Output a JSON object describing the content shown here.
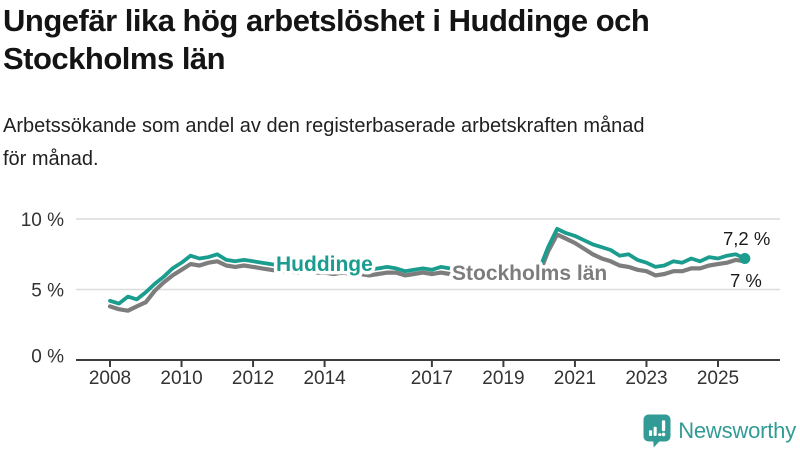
{
  "header": {
    "title": "Ungefär lika hög arbetslöshet i Huddinge och Stockholms län",
    "title_lines": [
      "Ungefär lika hög arbetslöshet i Huddinge och",
      "Stockholms län"
    ],
    "subtitle": "Arbetssökande som andel av den registerbaserade arbetskraften månad för månad.",
    "subtitle_lines": [
      "Arbetssökande som andel av den registerbaserade arbetskraften månad",
      "för månad."
    ]
  },
  "chart_data": {
    "type": "line",
    "title": "Ungefär lika hög arbetslöshet i Huddinge och Stockholms län",
    "subtitle": "Arbetssökande som andel av den registerbaserade arbetskraften månad för månad.",
    "unit": "%",
    "ylim": [
      0,
      10
    ],
    "x_range": [
      2008,
      2025.75
    ],
    "grid": "horizontal",
    "y_tick_values": [
      10,
      5,
      0
    ],
    "y_tick_labels": [
      "10 %",
      "5 %",
      "0 %"
    ],
    "x_tick_values": [
      2008,
      2010,
      2012,
      2014,
      2017,
      2019,
      2021,
      2023,
      2025
    ],
    "x_tick_labels": [
      "2008",
      "2010",
      "2012",
      "2014",
      "2017",
      "2019",
      "2021",
      "2023",
      "2025"
    ],
    "x": [
      2008.0,
      2008.25,
      2008.5,
      2008.75,
      2009.0,
      2009.25,
      2009.5,
      2009.75,
      2010.0,
      2010.25,
      2010.5,
      2010.75,
      2011.0,
      2011.25,
      2011.5,
      2011.75,
      2012.0,
      2012.25,
      2012.5,
      2012.75,
      2013.0,
      2013.25,
      2013.5,
      2013.75,
      2014.0,
      2014.25,
      2014.5,
      2014.75,
      2015.0,
      2015.25,
      2015.5,
      2015.75,
      2016.0,
      2016.25,
      2016.5,
      2016.75,
      2017.0,
      2017.25,
      2017.5,
      2017.75,
      2018.0,
      2018.25,
      2018.5,
      2018.75,
      2019.0,
      2019.25,
      2019.5,
      2019.75,
      2020.0,
      2020.25,
      2020.5,
      2020.75,
      2021.0,
      2021.25,
      2021.5,
      2021.75,
      2022.0,
      2022.25,
      2022.5,
      2022.75,
      2023.0,
      2023.25,
      2023.5,
      2023.75,
      2024.0,
      2024.25,
      2024.5,
      2024.75,
      2025.0,
      2025.25,
      2025.5,
      2025.75
    ],
    "series": [
      {
        "name": "Huddinge",
        "color": "#1a9c8e",
        "end_label": "7,2 %",
        "end_value": 7.2,
        "values": [
          4.2,
          4.0,
          4.5,
          4.3,
          4.8,
          5.4,
          5.9,
          6.5,
          6.9,
          7.4,
          7.2,
          7.3,
          7.5,
          7.1,
          7.0,
          7.1,
          7.0,
          6.9,
          6.8,
          6.7,
          6.7,
          6.6,
          6.7,
          6.6,
          6.6,
          6.5,
          6.6,
          6.5,
          6.5,
          6.4,
          6.5,
          6.6,
          6.5,
          6.3,
          6.4,
          6.5,
          6.4,
          6.6,
          6.5,
          6.4,
          6.4,
          6.3,
          6.3,
          6.2,
          6.2,
          6.3,
          6.3,
          6.3,
          6.4,
          8.0,
          9.3,
          9.0,
          8.8,
          8.5,
          8.2,
          8.0,
          7.8,
          7.4,
          7.5,
          7.1,
          6.9,
          6.6,
          6.7,
          7.0,
          6.9,
          7.2,
          7.0,
          7.3,
          7.2,
          7.4,
          7.5,
          7.2
        ]
      },
      {
        "name": "Stockholms län",
        "color": "#7d7d7d",
        "end_label": "7 %",
        "end_value": 7.0,
        "values": [
          3.8,
          3.6,
          3.5,
          3.8,
          4.1,
          4.9,
          5.5,
          6.0,
          6.4,
          6.8,
          6.7,
          6.9,
          7.0,
          6.7,
          6.6,
          6.7,
          6.6,
          6.5,
          6.4,
          6.3,
          6.3,
          6.2,
          6.3,
          6.2,
          6.2,
          6.1,
          6.2,
          6.1,
          6.1,
          6.0,
          6.1,
          6.2,
          6.2,
          6.0,
          6.1,
          6.2,
          6.1,
          6.2,
          6.1,
          6.0,
          5.9,
          5.9,
          5.8,
          5.8,
          5.8,
          5.9,
          5.9,
          6.0,
          6.1,
          7.7,
          8.9,
          8.6,
          8.3,
          7.9,
          7.5,
          7.2,
          7.0,
          6.7,
          6.6,
          6.4,
          6.3,
          6.0,
          6.1,
          6.3,
          6.3,
          6.5,
          6.5,
          6.7,
          6.8,
          6.9,
          7.1,
          7.0
        ]
      }
    ],
    "colors": {
      "gridline": "#dcdcdc",
      "axis": "#3c3c3c",
      "tick_text": "#333333",
      "annotation_text": "#1a1a1a"
    }
  },
  "footer": {
    "brand": "Newsworthy",
    "brand_color": "#339b95"
  }
}
